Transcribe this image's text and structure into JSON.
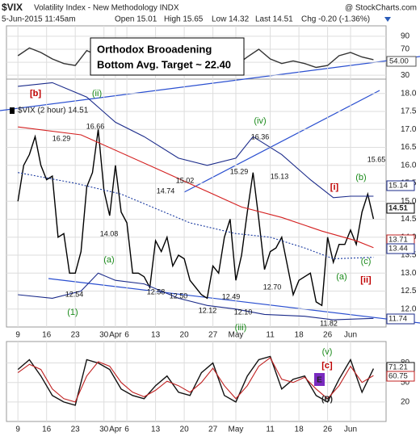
{
  "chart_data": [
    {
      "type": "line",
      "x": [
        0,
        2,
        4,
        6,
        8,
        10,
        12,
        14,
        16,
        18,
        20,
        22,
        24,
        26,
        28,
        30,
        32,
        34,
        36,
        38,
        40,
        42,
        44,
        46,
        48,
        50,
        52,
        54,
        56,
        58,
        60,
        62
      ],
      "xlim": [
        -2,
        64.2
      ],
      "ylim": [
        24,
        106
      ],
      "yticks": [
        30,
        50,
        70,
        90
      ],
      "grid": true,
      "series": [
        {
          "color": "#333333",
          "values": [
            60,
            72,
            65,
            55,
            48,
            45,
            68,
            60,
            66,
            52,
            48,
            45,
            50,
            46,
            42,
            50,
            55,
            60,
            48,
            45,
            58,
            70,
            55,
            48,
            52,
            48,
            42,
            45,
            60,
            65,
            58,
            54
          ]
        }
      ],
      "annotations": [
        "54.00"
      ]
    },
    {
      "type": "line",
      "title": "$VIX",
      "subtitle": "Volatility Index - New Methodology  INDX",
      "source": "@ StockCharts.com",
      "date": "5-Jun-2015 11:45am",
      "quote": [
        "Open 15.01",
        "High 15.65",
        "Low 14.32",
        "Last 14.51",
        "Chg -0.20 (-1.36%)"
      ],
      "x": [
        0,
        1,
        2,
        3,
        4,
        5,
        6,
        7,
        8,
        9,
        10,
        11,
        12,
        13,
        14,
        15,
        16,
        17,
        18,
        19,
        20,
        21,
        22,
        23,
        24,
        25,
        26,
        27,
        28,
        29,
        30,
        31,
        32,
        33,
        34,
        35,
        36,
        37,
        38,
        39,
        40,
        41,
        42,
        43,
        44,
        45,
        46,
        47,
        48,
        49,
        50,
        51,
        52,
        53,
        54,
        55,
        56,
        57,
        58,
        59,
        60,
        61,
        62
      ],
      "xlim": [
        -2,
        64.2
      ],
      "xticks": [
        {
          "value": 0,
          "label": "9"
        },
        {
          "value": 5,
          "label": "16"
        },
        {
          "value": 10,
          "label": "23"
        },
        {
          "value": 15,
          "label": "30"
        },
        {
          "value": 17,
          "label": "Apr"
        },
        {
          "value": 19,
          "label": "6"
        },
        {
          "value": 24,
          "label": "13"
        },
        {
          "value": 29,
          "label": "20"
        },
        {
          "value": 34,
          "label": "27"
        },
        {
          "value": 38,
          "label": "May"
        },
        {
          "value": 44,
          "label": "11"
        },
        {
          "value": 49,
          "label": "18"
        },
        {
          "value": 54,
          "label": "26"
        },
        {
          "value": 58,
          "label": "Jun"
        }
      ],
      "ylim": [
        11.5,
        18.4
      ],
      "yticks": [
        {
          "value": 12,
          "label": "12.0"
        },
        {
          "value": 12.5,
          "label": "12.5"
        },
        {
          "value": 13,
          "label": "13.0"
        },
        {
          "value": 13.5,
          "label": "13.5"
        },
        {
          "value": 14,
          "label": "14.0"
        },
        {
          "value": 14.5,
          "label": "14.5"
        },
        {
          "value": 15,
          "label": "15.0"
        },
        {
          "value": 15.5,
          "label": "15.5"
        },
        {
          "value": 16,
          "label": "16.0"
        },
        {
          "value": 16.5,
          "label": "16.5"
        },
        {
          "value": 17,
          "label": "17.0"
        },
        {
          "value": 17.5,
          "label": "17.5"
        },
        {
          "value": 18,
          "label": "18.0"
        }
      ],
      "grid": true,
      "series": [
        {
          "name": "$VIX (2 hour) 14.51",
          "color": "#000000",
          "values": [
            15.0,
            16.0,
            16.3,
            16.8,
            16.0,
            15.6,
            15.7,
            14.0,
            14.1,
            13.0,
            13.0,
            13.6,
            15.4,
            15.8,
            17.0,
            15.3,
            14.6,
            16.0,
            14.7,
            14.4,
            13.0,
            13.0,
            12.9,
            12.6,
            13.9,
            13.6,
            14.0,
            13.2,
            13.5,
            13.4,
            12.8,
            12.6,
            12.4,
            12.3,
            13.2,
            13.0,
            14.0,
            14.5,
            12.8,
            13.5,
            14.7,
            15.8,
            14.5,
            13.1,
            13.6,
            13.7,
            14.0,
            13.2,
            12.4,
            12.8,
            12.9,
            13.0,
            12.2,
            12.1,
            14.0,
            13.3,
            13.8,
            13.8,
            14.2,
            13.8,
            14.7,
            15.2,
            14.51
          ]
        },
        {
          "color": "#d42020",
          "x": [
            0,
            11,
            25,
            39,
            46,
            53,
            59,
            62
          ],
          "values": [
            17.07,
            16.85,
            15.85,
            14.84,
            14.55,
            14.17,
            13.9,
            13.71
          ]
        },
        {
          "color": "#1a2a8a",
          "x": [
            0,
            6,
            12,
            17,
            22,
            28,
            33,
            38,
            41,
            46,
            51,
            55,
            58,
            62
          ],
          "values": [
            18.2,
            18.3,
            17.9,
            17.2,
            16.8,
            16.2,
            16.0,
            16.2,
            16.8,
            16.3,
            15.6,
            15.1,
            15.14,
            15.14
          ]
        },
        {
          "color": "#1a2a8a",
          "x": [
            0,
            6,
            11,
            14,
            17,
            22,
            28,
            33,
            38,
            43,
            50,
            55,
            62
          ],
          "values": [
            12.4,
            12.3,
            12.5,
            13.0,
            12.8,
            12.7,
            12.3,
            12.1,
            12.0,
            11.85,
            11.8,
            11.7,
            11.74
          ]
        },
        {
          "color": "#1a3aa0",
          "dashed": true,
          "x": [
            0,
            10,
            18,
            24,
            30,
            38,
            44,
            50,
            55,
            62
          ],
          "values": [
            15.8,
            15.5,
            15.2,
            14.8,
            14.4,
            14.1,
            14.0,
            13.7,
            13.4,
            13.44
          ]
        }
      ],
      "price_labels": [
        "16.29",
        "16.66",
        "14.08",
        "12.54",
        "14.74",
        "15.02",
        "12.58",
        "12.50",
        "12.12",
        "12.49",
        "15.29",
        "16.36",
        "15.13",
        "12.10",
        "12.70",
        "11.82",
        "15.65"
      ],
      "wave_labels": [
        "[b]",
        "(ii)",
        "(iv)",
        "(iii)",
        "(a)",
        "(1)",
        "(a)",
        "(b)",
        "(c)",
        "[i]",
        "[ii]"
      ],
      "box_text": [
        "Orthodox Brooadening",
        "Bottom Avg. Target ~ 22.40"
      ],
      "axis_labels": [
        "15.14",
        "14.51",
        "13.71",
        "13.44",
        "11.74"
      ]
    },
    {
      "type": "line",
      "x": [
        0,
        2,
        4,
        6,
        8,
        10,
        12,
        14,
        16,
        18,
        20,
        22,
        24,
        26,
        28,
        30,
        32,
        34,
        36,
        38,
        40,
        42,
        44,
        46,
        48,
        50,
        52,
        54,
        56,
        58,
        60,
        62
      ],
      "xlim": [
        -2,
        64.2
      ],
      "ylim": [
        -10,
        113
      ],
      "yticks": [
        20,
        50,
        80
      ],
      "grid": true,
      "xticks": [
        {
          "value": 0,
          "label": "9"
        },
        {
          "value": 5,
          "label": "16"
        },
        {
          "value": 10,
          "label": "23"
        },
        {
          "value": 15,
          "label": "30"
        },
        {
          "value": 17,
          "label": "Apr"
        },
        {
          "value": 19,
          "label": "6"
        },
        {
          "value": 24,
          "label": "13"
        },
        {
          "value": 29,
          "label": "20"
        },
        {
          "value": 34,
          "label": "27"
        },
        {
          "value": 38,
          "label": "May"
        },
        {
          "value": 44,
          "label": "11"
        },
        {
          "value": 49,
          "label": "18"
        },
        {
          "value": 54,
          "label": "26"
        },
        {
          "value": 58,
          "label": "Jun"
        }
      ],
      "series": [
        {
          "color": "#111111",
          "values": [
            70,
            85,
            60,
            30,
            20,
            15,
            85,
            80,
            70,
            40,
            30,
            25,
            45,
            60,
            35,
            30,
            65,
            80,
            30,
            20,
            60,
            85,
            90,
            40,
            55,
            60,
            30,
            20,
            55,
            85,
            35,
            71.21
          ]
        },
        {
          "color": "#c02020",
          "values": [
            65,
            78,
            70,
            40,
            25,
            20,
            60,
            82,
            75,
            50,
            35,
            28,
            38,
            52,
            45,
            35,
            50,
            72,
            45,
            25,
            45,
            75,
            88,
            55,
            50,
            58,
            40,
            25,
            45,
            75,
            50,
            60.75
          ]
        }
      ],
      "wave_labels": [
        "(v)",
        "[c]",
        "E",
        "(B)"
      ],
      "annotations": [
        "71.21",
        "60.75"
      ]
    }
  ]
}
